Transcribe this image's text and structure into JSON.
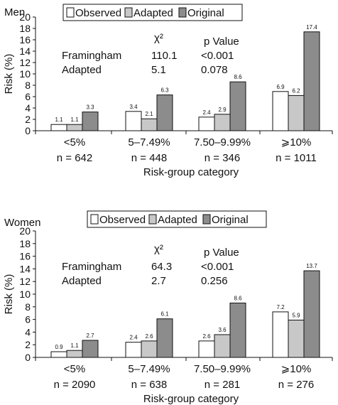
{
  "chart_data": [
    {
      "type": "bar",
      "title": "Men",
      "ylabel": "Risk (%)",
      "xlabel": "Risk-group category",
      "ylim": [
        0,
        20
      ],
      "yticks": [
        0,
        2,
        4,
        6,
        8,
        10,
        12,
        14,
        16,
        18,
        20
      ],
      "categories": [
        "<5%",
        "5–7.49%",
        "7.50–9.99%",
        "⩾10%"
      ],
      "n_labels": [
        "n = 642",
        "n = 448",
        "n = 346",
        "n = 1011"
      ],
      "series": [
        {
          "name": "Observed",
          "color": "#ffffff",
          "values": [
            1.1,
            3.4,
            2.4,
            6.9
          ]
        },
        {
          "name": "Adapted",
          "color": "#c8c8c8",
          "values": [
            1.1,
            2.1,
            2.9,
            6.2
          ]
        },
        {
          "name": "Original",
          "color": "#8c8c8c",
          "values": [
            3.3,
            6.3,
            8.6,
            17.4
          ]
        }
      ],
      "stats": {
        "col_chi": "χ²",
        "col_p": "p Value",
        "rows": [
          {
            "label": "Framingham",
            "chi": "110.1",
            "p": "<0.001"
          },
          {
            "label": "Adapted",
            "chi": "5.1",
            "p": "0.078"
          }
        ]
      }
    },
    {
      "type": "bar",
      "title": "Women",
      "ylabel": "Risk (%)",
      "xlabel": "Risk-group category",
      "ylim": [
        0,
        20
      ],
      "yticks": [
        0,
        2,
        4,
        6,
        8,
        10,
        12,
        14,
        16,
        18,
        20
      ],
      "categories": [
        "<5%",
        "5–7.49%",
        "7.50–9.99%",
        "⩾10%"
      ],
      "n_labels": [
        "n = 2090",
        "n = 638",
        "n = 281",
        "n = 276"
      ],
      "series": [
        {
          "name": "Observed",
          "color": "#ffffff",
          "values": [
            0.9,
            2.4,
            2.6,
            7.2
          ]
        },
        {
          "name": "Adapted",
          "color": "#c8c8c8",
          "values": [
            1.1,
            2.6,
            3.6,
            5.9
          ]
        },
        {
          "name": "Original",
          "color": "#8c8c8c",
          "values": [
            2.7,
            6.1,
            8.6,
            13.7
          ]
        }
      ],
      "stats": {
        "col_chi": "χ²",
        "col_p": "p Value",
        "rows": [
          {
            "label": "Framingham",
            "chi": "64.3",
            "p": "<0.001"
          },
          {
            "label": "Adapted",
            "chi": "2.7",
            "p": "0.256"
          }
        ]
      }
    }
  ]
}
